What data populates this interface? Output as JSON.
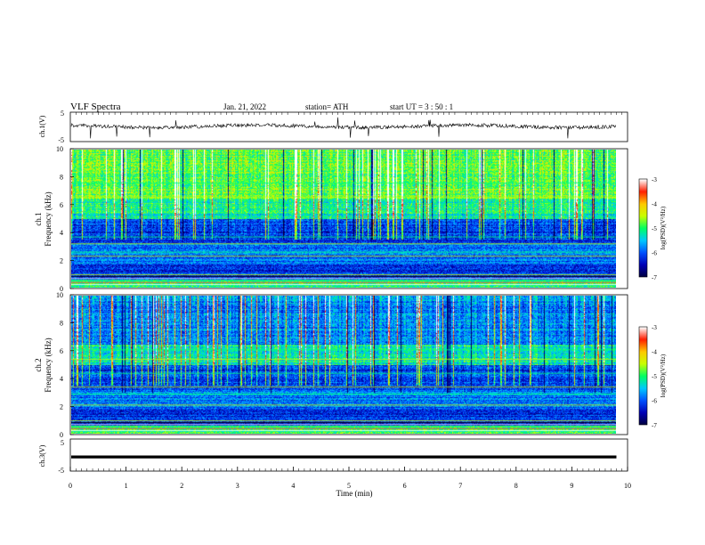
{
  "header": {
    "title": "VLF  Spectra",
    "date": "Jan. 21, 2022",
    "station": "station= ATH",
    "start": "start  UT  =   3  : 50 : 1"
  },
  "chart_data": [
    {
      "type": "line",
      "name_label": "ch.1(V)",
      "ylim": [
        -5,
        5
      ],
      "ytick_labels": [
        "5",
        "-5"
      ],
      "description_values": "voltage trace fluctuating near 0 V with downward spikes",
      "baseline": 0.2
    },
    {
      "type": "heatmap",
      "ylabel": "Frequency  (kHz)",
      "channel_label": "ch.1",
      "ylim": [
        0,
        10
      ],
      "ytick_labels": [
        "0",
        "2",
        "4",
        "6",
        "8",
        "10"
      ],
      "colorbar": {
        "label": "log(PSD)(V²/Hz)",
        "range": [
          -7,
          -3
        ],
        "tick_labels": [
          "-3",
          "-4",
          "-5",
          "-6",
          "-7"
        ]
      }
    },
    {
      "type": "heatmap",
      "ylabel": "Frequency  (kHz)",
      "channel_label": "ch.2",
      "ylim": [
        0,
        10
      ],
      "ytick_labels": [
        "0",
        "2",
        "4",
        "6",
        "8",
        "10"
      ],
      "colorbar": {
        "label": "log(PSD)(V²/Hz)",
        "range": [
          -7,
          -3
        ],
        "tick_labels": [
          "-3",
          "-4",
          "-5",
          "-6",
          "-7"
        ]
      }
    },
    {
      "type": "line",
      "name_label": "ch.3(V)",
      "ylim": [
        -5,
        5
      ],
      "ytick_labels": [
        "5",
        "-5"
      ],
      "baseline": -0.6
    }
  ],
  "xaxis": {
    "label": "Time  (min)",
    "range": [
      0,
      10
    ],
    "tick_labels": [
      "0",
      "1",
      "2",
      "3",
      "4",
      "5",
      "6",
      "7",
      "8",
      "9",
      "10"
    ],
    "data_end": 9.8
  },
  "colors": {
    "colormap": [
      "#00003c",
      "#0000b4",
      "#0050ff",
      "#00c8ff",
      "#00ff64",
      "#c8ff00",
      "#ffc800",
      "#ff1e00",
      "#ffffff"
    ]
  }
}
